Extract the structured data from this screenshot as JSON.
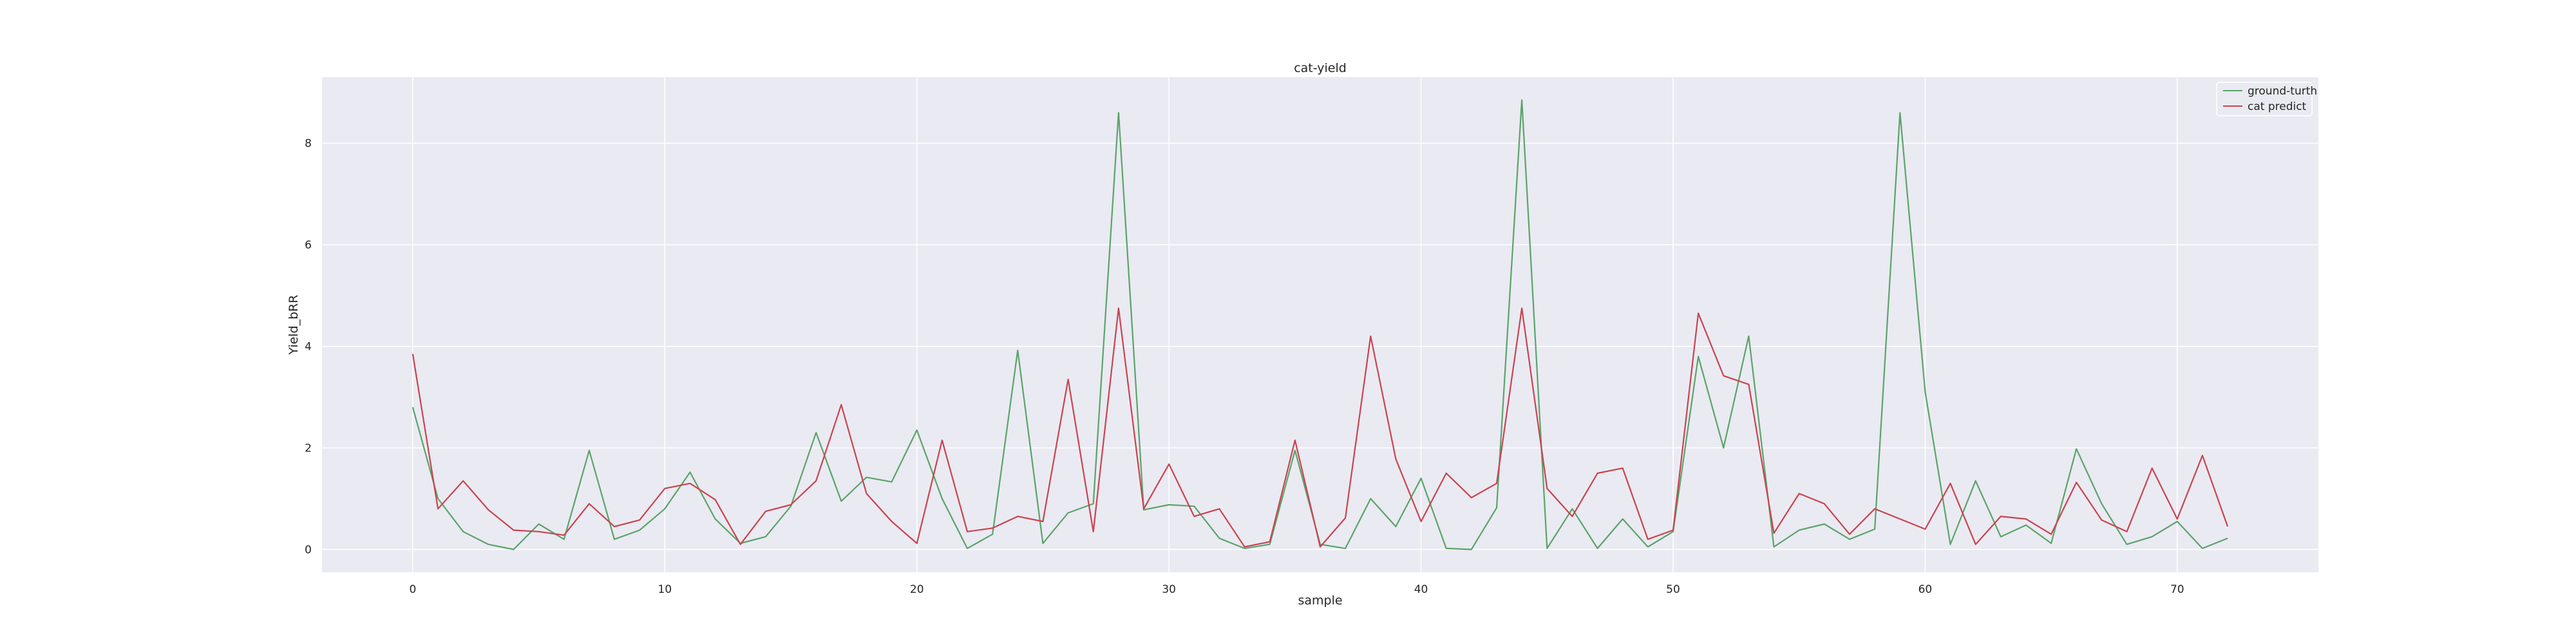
{
  "chart_data": {
    "type": "line",
    "title": "cat-yield",
    "xlabel": "sample",
    "ylabel": "Yield_bRR",
    "xlim": [
      -3.6,
      75.6
    ],
    "ylim": [
      -0.45,
      9.3
    ],
    "xticks": [
      0,
      10,
      20,
      30,
      40,
      50,
      60,
      70
    ],
    "yticks": [
      0,
      2,
      4,
      6,
      8
    ],
    "grid": true,
    "legend_position": "top-right",
    "colors": {
      "background": "#eaeaf2",
      "grid": "#ffffff",
      "text": "#262626"
    },
    "x": [
      0,
      1,
      2,
      3,
      4,
      5,
      6,
      7,
      8,
      9,
      10,
      11,
      12,
      13,
      14,
      15,
      16,
      17,
      18,
      19,
      20,
      21,
      22,
      23,
      24,
      25,
      26,
      27,
      28,
      29,
      30,
      31,
      32,
      33,
      34,
      35,
      36,
      37,
      38,
      39,
      40,
      41,
      42,
      43,
      44,
      45,
      46,
      47,
      48,
      49,
      50,
      51,
      52,
      53,
      54,
      55,
      56,
      57,
      58,
      59,
      60,
      61,
      62,
      63,
      64,
      65,
      66,
      67,
      68,
      69,
      70,
      71,
      72
    ],
    "series": [
      {
        "name": "ground-turth",
        "color": "#5aa469",
        "values": [
          2.8,
          1.0,
          0.35,
          0.1,
          0.0,
          0.5,
          0.2,
          1.95,
          0.2,
          0.38,
          0.8,
          1.52,
          0.6,
          0.12,
          0.25,
          0.85,
          2.3,
          0.95,
          1.42,
          1.33,
          2.35,
          1.0,
          0.02,
          0.3,
          3.92,
          0.12,
          0.72,
          0.9,
          8.6,
          0.78,
          0.88,
          0.85,
          0.22,
          0.02,
          0.1,
          1.95,
          0.1,
          0.02,
          1.0,
          0.45,
          1.4,
          0.02,
          0.0,
          0.82,
          8.85,
          0.02,
          0.8,
          0.02,
          0.6,
          0.05,
          0.35,
          3.8,
          2.0,
          4.2,
          0.05,
          0.38,
          0.5,
          0.2,
          0.4,
          8.6,
          3.1,
          0.1,
          1.35,
          0.25,
          0.48,
          0.12,
          1.98,
          0.9,
          0.1,
          0.25,
          0.55,
          0.02,
          0.22
        ]
      },
      {
        "name": "cat predict",
        "color": "#c8444f",
        "values": [
          3.85,
          0.8,
          1.35,
          0.78,
          0.38,
          0.35,
          0.28,
          0.9,
          0.45,
          0.58,
          1.2,
          1.3,
          0.98,
          0.1,
          0.75,
          0.88,
          1.35,
          2.85,
          1.1,
          0.55,
          0.12,
          2.15,
          0.35,
          0.42,
          0.65,
          0.55,
          3.35,
          0.35,
          4.75,
          0.8,
          1.68,
          0.65,
          0.8,
          0.05,
          0.15,
          2.15,
          0.05,
          0.62,
          4.2,
          1.78,
          0.55,
          1.5,
          1.02,
          1.3,
          4.75,
          1.2,
          0.65,
          1.5,
          1.6,
          0.2,
          0.38,
          4.65,
          3.42,
          3.25,
          0.32,
          1.1,
          0.9,
          0.3,
          0.8,
          0.6,
          0.4,
          1.3,
          0.1,
          0.65,
          0.6,
          0.3,
          1.32,
          0.58,
          0.35,
          1.6,
          0.6,
          1.85,
          0.45
        ]
      }
    ]
  }
}
